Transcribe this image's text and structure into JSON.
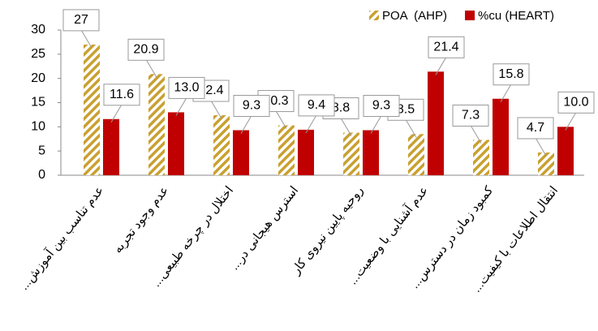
{
  "chart_data": {
    "type": "bar",
    "categories": [
      "عدم تناسب بین آموزش...",
      "عدم وجود تجربه",
      "اختلال در چرخه طبیعی...",
      "استرس هیجانی در...",
      "روحیه پایین نیروی کار",
      "عدم آشنایی با وضعیت...",
      "کمبود زمان در دسترس...",
      "انتقال اطلاعات با کیفیت..."
    ],
    "series": [
      {
        "name": "POA  (AHP)",
        "color": "#c9a030",
        "hatch": true,
        "values": [
          27,
          20.9,
          12.4,
          10.3,
          8.8,
          8.5,
          7.3,
          4.7
        ]
      },
      {
        "name": "%cu (HEART)",
        "color": "#c00000",
        "values": [
          11.6,
          13.0,
          9.3,
          9.4,
          9.3,
          21.4,
          15.8,
          10.0
        ],
        "value_labels": [
          "11.6",
          "13.0",
          "9.3",
          "9.4",
          "9.3",
          "21.4",
          "15.8",
          "10.0"
        ]
      }
    ],
    "ylim": [
      0,
      30
    ],
    "yticks": [
      0,
      5,
      10,
      15,
      20,
      25,
      30
    ],
    "legend": "top-right"
  }
}
